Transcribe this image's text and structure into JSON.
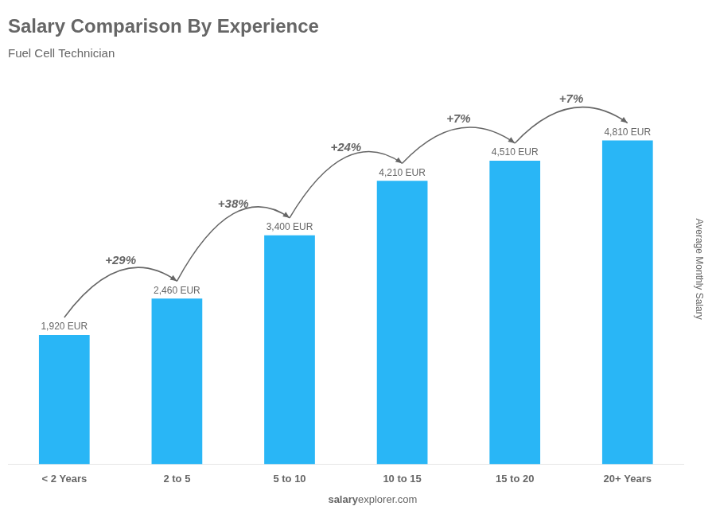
{
  "chart_data": {
    "type": "bar",
    "title": "Salary Comparison By Experience",
    "subtitle": "Fuel Cell Technician",
    "ylabel": "Average Monthly Salary",
    "categories": [
      "< 2 Years",
      "2 to 5",
      "5 to 10",
      "10 to 15",
      "15 to 20",
      "20+ Years"
    ],
    "values": [
      1920,
      2460,
      3400,
      4210,
      4510,
      4810
    ],
    "value_labels": [
      "1,920 EUR",
      "2,460 EUR",
      "3,400 EUR",
      "4,210 EUR",
      "4,510 EUR",
      "4,810 EUR"
    ],
    "data_labels": true,
    "annotations": [
      "+29%",
      "+38%",
      "+24%",
      "+7%",
      "+7%"
    ],
    "footer": [
      "salary",
      "explorer.com"
    ],
    "color": "#29b6f6",
    "ylim": [
      0,
      5800
    ],
    "grid": false,
    "tick_labels": "x"
  }
}
